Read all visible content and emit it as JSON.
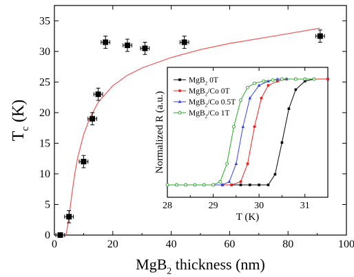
{
  "chart_data": [
    {
      "type": "scatter",
      "title": "",
      "xlabel": "MgB2 thickness (nm)",
      "ylabel": "Tc (K)",
      "xlim": [
        0,
        100
      ],
      "ylim": [
        0,
        37.5
      ],
      "xticks": [
        0,
        20,
        40,
        60,
        80,
        100
      ],
      "yticks": [
        0,
        5,
        10,
        15,
        20,
        25,
        30,
        35
      ],
      "grid": false,
      "points": [
        {
          "x": 2,
          "y": 0,
          "xerr": 1.5,
          "yerr": 0.2
        },
        {
          "x": 5,
          "y": 3,
          "xerr": 1.5,
          "yerr": 1
        },
        {
          "x": 10,
          "y": 12,
          "xerr": 1.5,
          "yerr": 1
        },
        {
          "x": 13,
          "y": 19,
          "xerr": 1.5,
          "yerr": 1
        },
        {
          "x": 15,
          "y": 23,
          "xerr": 1.5,
          "yerr": 1
        },
        {
          "x": 17.5,
          "y": 31.5,
          "xerr": 1.5,
          "yerr": 1
        },
        {
          "x": 25,
          "y": 31,
          "xerr": 1.5,
          "yerr": 1
        },
        {
          "x": 31,
          "y": 30.5,
          "xerr": 1.5,
          "yerr": 1
        },
        {
          "x": 44.5,
          "y": 31.5,
          "xerr": 1.5,
          "yerr": 1
        },
        {
          "x": 91,
          "y": 32.5,
          "xerr": 1.5,
          "yerr": 1
        }
      ],
      "fit_curve": {
        "color": "#f06060",
        "x": [
          4,
          5,
          6,
          7,
          8,
          10,
          12,
          15,
          20,
          25,
          30,
          40,
          50,
          60,
          70,
          80,
          91
        ],
        "y": [
          0,
          3,
          6.7,
          10.1,
          12.7,
          16.4,
          19.0,
          21.7,
          24.4,
          26.1,
          27.3,
          29.0,
          30.3,
          31.3,
          32.1,
          32.9,
          33.8
        ]
      },
      "marker_color": "#000000"
    },
    {
      "type": "line",
      "inset": true,
      "title": "",
      "xlabel": "T (K)",
      "ylabel": "Normalized R (a.u.)",
      "xlim": [
        28,
        31.5
      ],
      "ylim": [
        0,
        1.1
      ],
      "xticks": [
        28,
        29,
        30,
        31
      ],
      "legend_position": "top-left",
      "series": [
        {
          "name": "MgB2 0T",
          "color": "#000000",
          "marker": "square",
          "x": [
            28.2,
            28.4,
            28.6,
            28.8,
            29.0,
            29.2,
            29.4,
            29.6,
            29.8,
            30.0,
            30.2,
            30.35,
            30.5,
            30.65,
            30.8,
            31.0,
            31.2,
            31.5
          ],
          "y": [
            0,
            0,
            0,
            0,
            0,
            0,
            0,
            0,
            0,
            0,
            0,
            0.1,
            0.4,
            0.72,
            0.9,
            0.98,
            1,
            1
          ]
        },
        {
          "name": "MgB2/Co 0T",
          "color": "#ee2222",
          "marker": "circle",
          "x": [
            28.0,
            28.2,
            28.4,
            28.6,
            28.8,
            29.0,
            29.2,
            29.4,
            29.6,
            29.75,
            29.9,
            30.05,
            30.2,
            30.4,
            30.6,
            30.8,
            31.0,
            31.2,
            31.5
          ],
          "y": [
            0,
            0,
            0,
            0,
            0,
            0,
            0,
            0,
            0.03,
            0.2,
            0.55,
            0.82,
            0.94,
            0.98,
            1,
            1,
            1,
            1,
            1
          ]
        },
        {
          "name": "MgB2/Co 0.5T",
          "color": "#3344ee",
          "marker": "triangle",
          "x": [
            28.0,
            28.2,
            28.4,
            28.6,
            28.8,
            29.0,
            29.2,
            29.35,
            29.5,
            29.65,
            29.8,
            30.0,
            30.2,
            30.4,
            30.6,
            30.8,
            31.0,
            31.2
          ],
          "y": [
            0,
            0,
            0,
            0,
            0,
            0,
            0,
            0.03,
            0.2,
            0.55,
            0.82,
            0.94,
            0.98,
            1,
            1,
            1,
            1,
            1
          ]
        },
        {
          "name": "MgB2/Co 1T",
          "color": "#22aa22",
          "marker": "open-circle",
          "x": [
            28.0,
            28.2,
            28.4,
            28.6,
            28.8,
            29.0,
            29.15,
            29.3,
            29.45,
            29.6,
            29.75,
            29.9,
            30.1,
            30.3,
            30.5,
            30.8,
            31.0,
            31.2
          ],
          "y": [
            0,
            0,
            0,
            0,
            0,
            0,
            0.03,
            0.2,
            0.55,
            0.8,
            0.92,
            0.96,
            0.98,
            0.99,
            1,
            1,
            1,
            1
          ]
        }
      ]
    }
  ]
}
